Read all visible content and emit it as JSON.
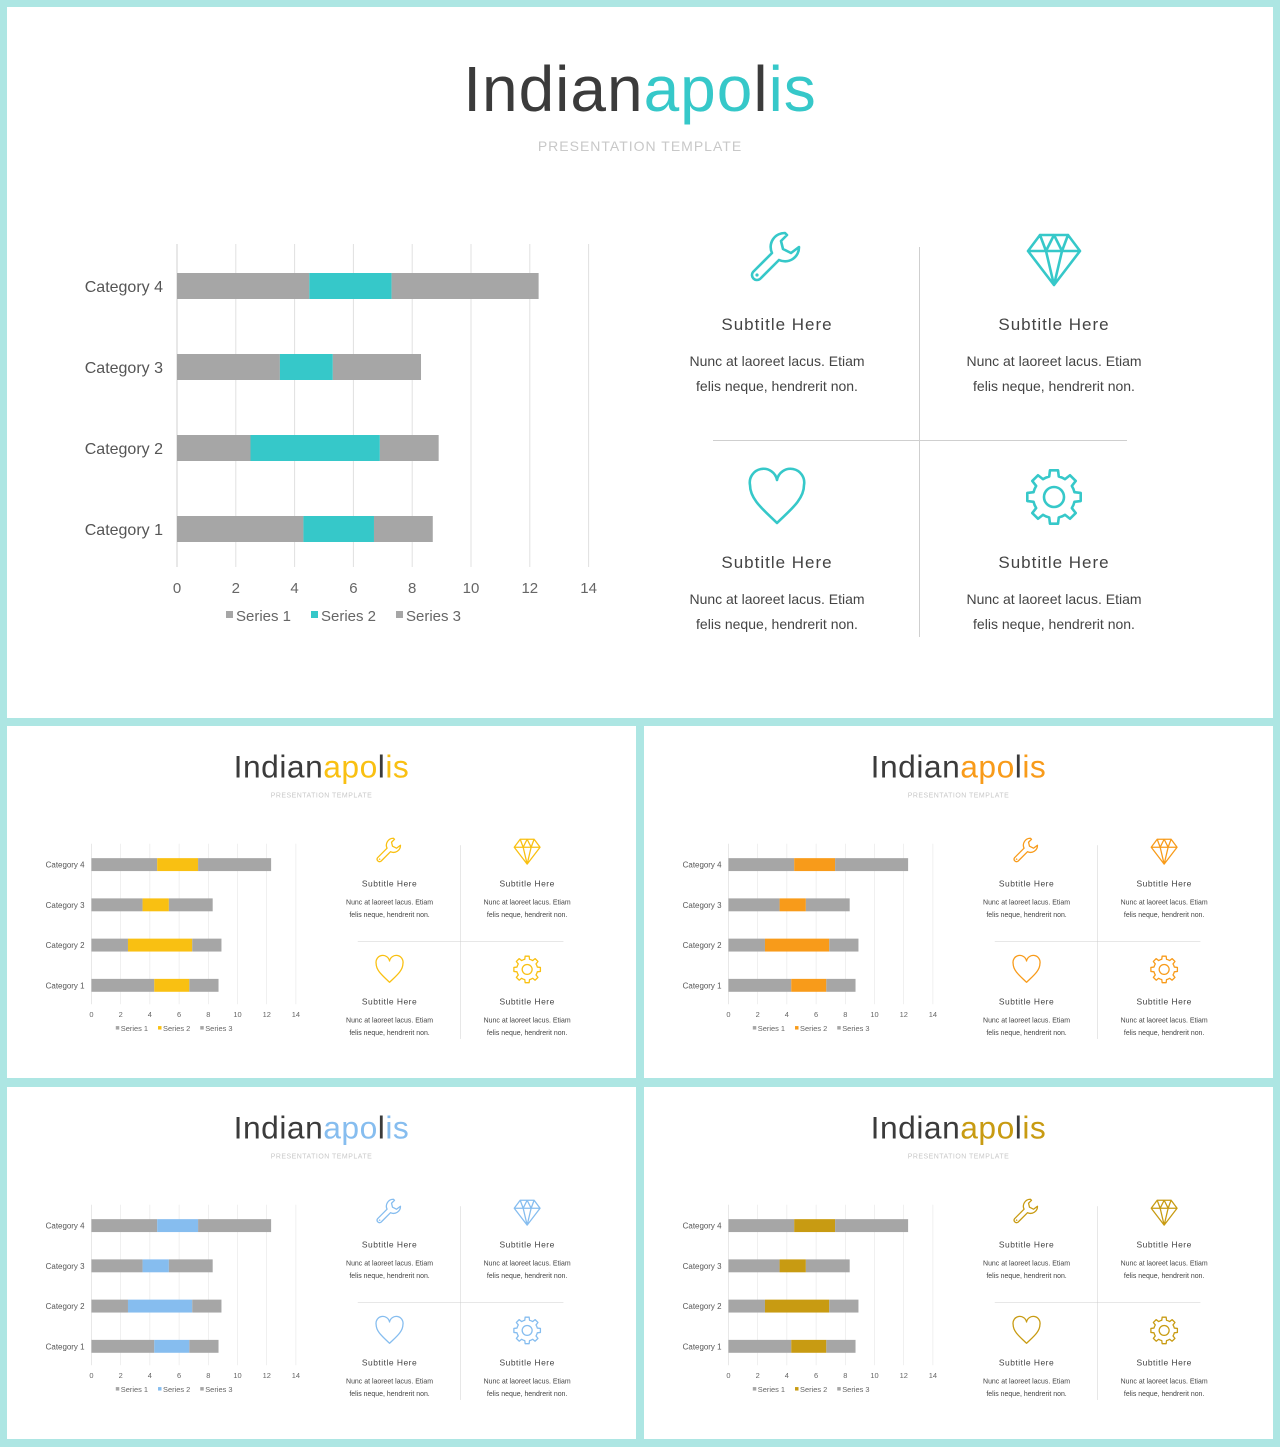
{
  "title": {
    "part1": "Indian",
    "part2": "apo",
    "part3": "l",
    "part4": "is"
  },
  "tagline": "PRESENTATION TEMPLATE",
  "slides": [
    {
      "variant": "main",
      "accent": "#36c8c9"
    },
    {
      "variant": "small",
      "accent": "#f9c012"
    },
    {
      "variant": "small",
      "accent": "#f89b1a"
    },
    {
      "variant": "small",
      "accent": "#86bdef"
    },
    {
      "variant": "small",
      "accent": "#c89b12"
    }
  ],
  "colors": {
    "series_gray": "#a6a6a6",
    "grid": "#e0e0e0",
    "text": "#444444"
  },
  "features": [
    {
      "icon": "wrench-icon",
      "subtitle": "Subtitle  Here",
      "line1": "Nunc at laoreet lacus. Etiam",
      "line2": "felis neque, hendrerit  non."
    },
    {
      "icon": "diamond-icon",
      "subtitle": "Subtitle  Here",
      "line1": "Nunc at laoreet lacus. Etiam",
      "line2": "felis neque, hendrerit  non."
    },
    {
      "icon": "heart-icon",
      "subtitle": "Subtitle  Here",
      "line1": "Nunc at laoreet lacus. Etiam",
      "line2": "felis neque, hendrerit  non."
    },
    {
      "icon": "gear-icon",
      "subtitle": "Subtitle  Here",
      "line1": "Nunc at laoreet lacus. Etiam",
      "line2": "felis neque, hendrerit  non."
    }
  ],
  "chart_data": {
    "type": "bar",
    "stacked": true,
    "orientation": "horizontal",
    "categories": [
      "Category 1",
      "Category 2",
      "Category 3",
      "Category 4"
    ],
    "series": [
      {
        "name": "Series 1",
        "values": [
          4.3,
          2.5,
          3.5,
          4.5
        ]
      },
      {
        "name": "Series 2",
        "values": [
          2.4,
          4.4,
          1.8,
          2.8
        ]
      },
      {
        "name": "Series 3",
        "values": [
          2.0,
          2.0,
          3.0,
          5.0
        ]
      }
    ],
    "xlim": [
      0,
      14
    ],
    "xticks": [
      0,
      2,
      4,
      6,
      8,
      10,
      12,
      14
    ],
    "grid": true,
    "legend": "bottom"
  }
}
